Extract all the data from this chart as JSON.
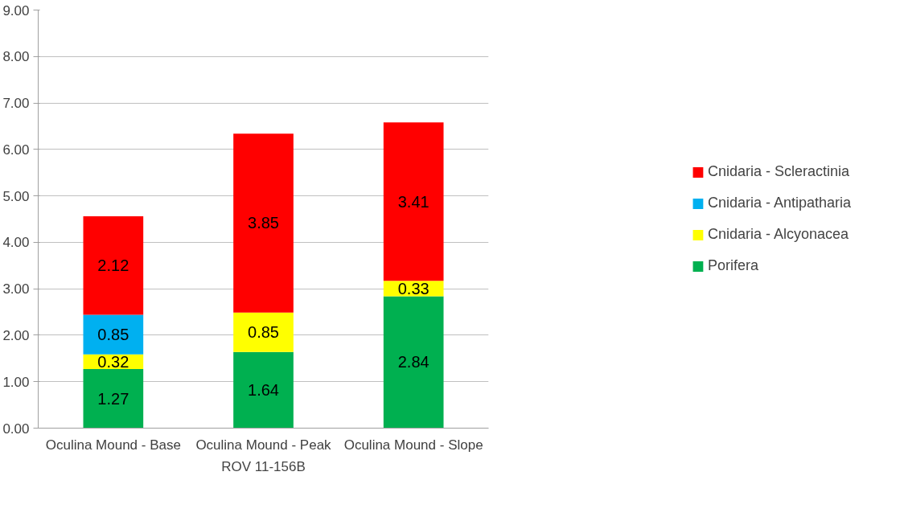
{
  "chart_data": {
    "type": "bar",
    "stacked": true,
    "categories": [
      "Oculina Mound - Base",
      "Oculina Mound - Peak",
      "Oculina Mound - Slope"
    ],
    "xlabel": "ROV 11-156B",
    "series": [
      {
        "name": "Porifera",
        "color": "#00b050",
        "values": [
          1.27,
          1.64,
          2.84
        ]
      },
      {
        "name": "Cnidaria - Alcyonacea",
        "color": "#ffff00",
        "values": [
          0.32,
          0.85,
          0.33
        ]
      },
      {
        "name": "Cnidaria - Antipatharia",
        "color": "#00b0f0",
        "values": [
          0.85,
          null,
          null
        ]
      },
      {
        "name": "Cnidaria - Scleractinia",
        "color": "#ff0000",
        "values": [
          2.12,
          3.85,
          3.41
        ]
      }
    ],
    "ylim": [
      0,
      9
    ],
    "yticks": [
      {
        "value": 0,
        "label": "0.00"
      },
      {
        "value": 1,
        "label": "1.00"
      },
      {
        "value": 2,
        "label": "2.00"
      },
      {
        "value": 3,
        "label": "3.00"
      },
      {
        "value": 4,
        "label": "4.00"
      },
      {
        "value": 5,
        "label": "5.00"
      },
      {
        "value": 6,
        "label": "6.00"
      },
      {
        "value": 7,
        "label": "7.00"
      },
      {
        "value": 8,
        "label": "8.00"
      },
      {
        "value": 9,
        "label": "9.00"
      }
    ],
    "grid": "y",
    "legend": "right",
    "data_labels": true
  }
}
